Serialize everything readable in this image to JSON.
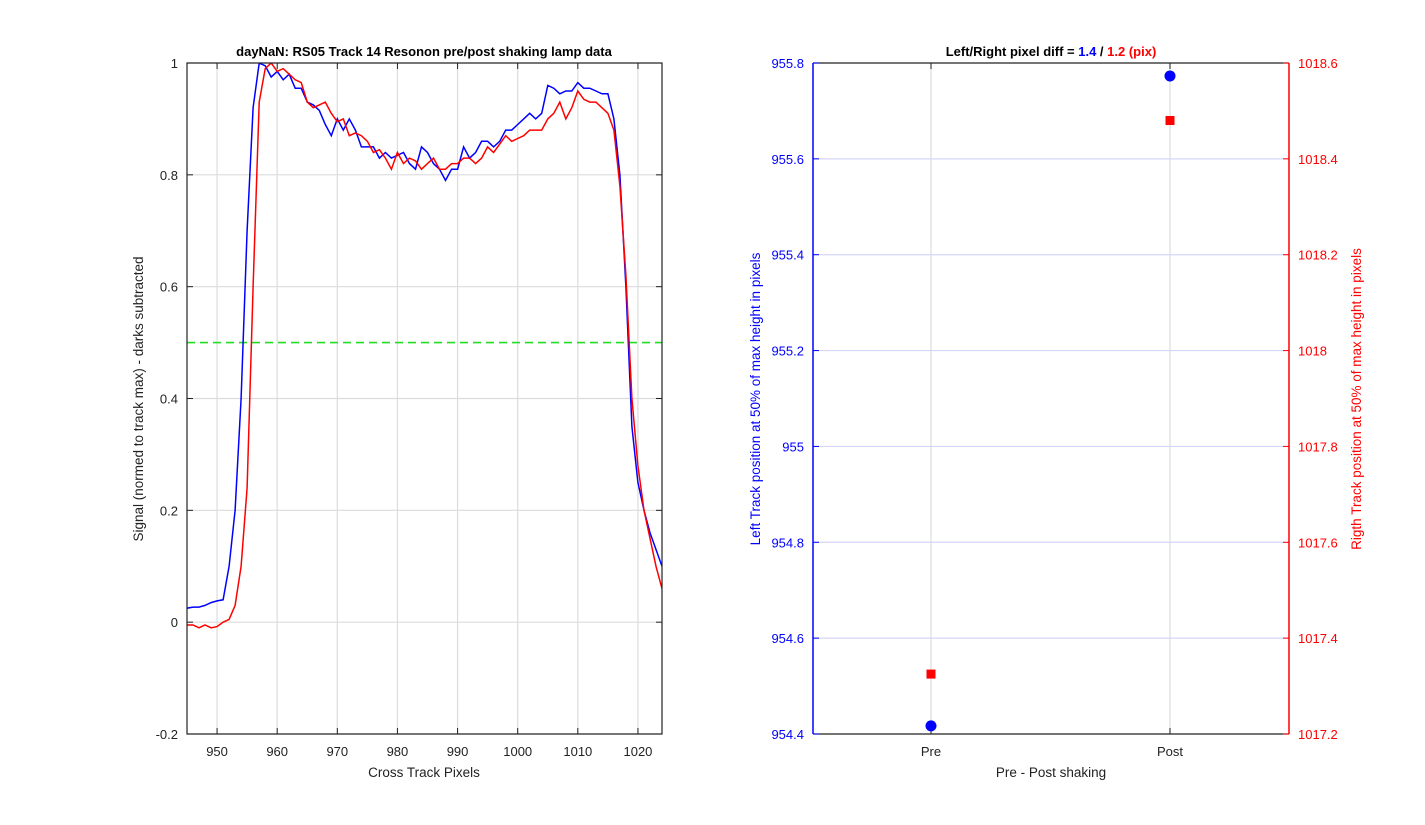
{
  "chart_data": [
    {
      "type": "line",
      "title": "dayNaN: RS05  Track 14 Resonon pre/post shaking lamp data",
      "xlabel": "Cross Track Pixels",
      "ylabel": "Signal (normed to track max) - darks subtracted",
      "xlim": [
        945,
        1024
      ],
      "ylim": [
        -0.2,
        1
      ],
      "xticks": [
        950,
        960,
        970,
        980,
        990,
        1000,
        1010,
        1020
      ],
      "yticks": [
        -0.2,
        0,
        0.2,
        0.4,
        0.6,
        0.8,
        1
      ],
      "ytick_labels": [
        "-0.2",
        "0",
        "0.2",
        "0.4",
        "0.6",
        "0.8",
        "1"
      ],
      "grid": true,
      "threshold_line": {
        "y": 0.5,
        "color": "#22dd22",
        "style": "dashed"
      },
      "series": [
        {
          "color": "#0000ff",
          "x": [
            945,
            946,
            947,
            948,
            949,
            950,
            951,
            952,
            953,
            954,
            955,
            956,
            957,
            958,
            959,
            960,
            961,
            962,
            963,
            964,
            965,
            966,
            967,
            968,
            969,
            970,
            971,
            972,
            973,
            974,
            975,
            976,
            977,
            978,
            979,
            980,
            981,
            982,
            983,
            984,
            985,
            986,
            987,
            988,
            989,
            990,
            991,
            992,
            993,
            994,
            995,
            996,
            997,
            998,
            999,
            1000,
            1001,
            1002,
            1003,
            1004,
            1005,
            1006,
            1007,
            1008,
            1009,
            1010,
            1011,
            1012,
            1013,
            1014,
            1015,
            1016,
            1017,
            1018,
            1019,
            1020,
            1021,
            1022,
            1023,
            1024
          ],
          "values": [
            0.025,
            0.027,
            0.027,
            0.03,
            0.035,
            0.038,
            0.04,
            0.1,
            0.2,
            0.4,
            0.7,
            0.92,
            1.0,
            0.995,
            0.975,
            0.985,
            0.97,
            0.98,
            0.955,
            0.955,
            0.93,
            0.925,
            0.915,
            0.89,
            0.87,
            0.9,
            0.88,
            0.9,
            0.88,
            0.85,
            0.85,
            0.85,
            0.83,
            0.84,
            0.83,
            0.835,
            0.84,
            0.82,
            0.81,
            0.85,
            0.84,
            0.82,
            0.81,
            0.79,
            0.81,
            0.81,
            0.85,
            0.83,
            0.84,
            0.86,
            0.86,
            0.85,
            0.86,
            0.88,
            0.88,
            0.89,
            0.9,
            0.91,
            0.9,
            0.91,
            0.96,
            0.955,
            0.945,
            0.95,
            0.95,
            0.965,
            0.955,
            0.955,
            0.95,
            0.945,
            0.945,
            0.9,
            0.8,
            0.6,
            0.35,
            0.25,
            0.2,
            0.16,
            0.13,
            0.1
          ]
        },
        {
          "color": "#ff0000",
          "x": [
            945,
            946,
            947,
            948,
            949,
            950,
            951,
            952,
            953,
            954,
            955,
            956,
            957,
            958,
            959,
            960,
            961,
            962,
            963,
            964,
            965,
            966,
            967,
            968,
            969,
            970,
            971,
            972,
            973,
            974,
            975,
            976,
            977,
            978,
            979,
            980,
            981,
            982,
            983,
            984,
            985,
            986,
            987,
            988,
            989,
            990,
            991,
            992,
            993,
            994,
            995,
            996,
            997,
            998,
            999,
            1000,
            1001,
            1002,
            1003,
            1004,
            1005,
            1006,
            1007,
            1008,
            1009,
            1010,
            1011,
            1012,
            1013,
            1014,
            1015,
            1016,
            1017,
            1018,
            1019,
            1020,
            1021,
            1022,
            1023,
            1024
          ],
          "values": [
            -0.005,
            -0.005,
            -0.01,
            -0.005,
            -0.01,
            -0.008,
            0.0,
            0.005,
            0.03,
            0.1,
            0.24,
            0.6,
            0.93,
            0.99,
            1.0,
            0.985,
            0.99,
            0.98,
            0.97,
            0.965,
            0.93,
            0.92,
            0.925,
            0.93,
            0.91,
            0.895,
            0.9,
            0.87,
            0.875,
            0.87,
            0.86,
            0.84,
            0.845,
            0.83,
            0.81,
            0.84,
            0.82,
            0.83,
            0.825,
            0.81,
            0.82,
            0.83,
            0.81,
            0.81,
            0.82,
            0.82,
            0.83,
            0.83,
            0.82,
            0.83,
            0.85,
            0.84,
            0.855,
            0.87,
            0.86,
            0.865,
            0.87,
            0.88,
            0.88,
            0.88,
            0.9,
            0.91,
            0.93,
            0.9,
            0.92,
            0.95,
            0.935,
            0.93,
            0.93,
            0.92,
            0.91,
            0.88,
            0.78,
            0.62,
            0.4,
            0.28,
            0.2,
            0.15,
            0.1,
            0.06
          ]
        }
      ]
    },
    {
      "type": "scatter",
      "title_parts": [
        {
          "text": "Left/Right pixel diff = ",
          "color": "#000000"
        },
        {
          "text": "1.4",
          "color": "#0000ff"
        },
        {
          "text": " / ",
          "color": "#000000"
        },
        {
          "text": "1.2 (pix)",
          "color": "#ff0000"
        }
      ],
      "xlabel": "Pre - Post shaking",
      "categories": [
        "Pre",
        "Post"
      ],
      "ylabel_left": "Left Track position at 50% of max height in pixels",
      "ylabel_right": "Rigth Track position at 50% of max height in pixels",
      "ylim_left": [
        954.4,
        955.8
      ],
      "yticks_left": [
        954.4,
        954.6,
        954.8,
        955,
        955.2,
        955.4,
        955.6,
        955.8
      ],
      "ytick_labels_left": [
        "954.4",
        "954.6",
        "954.8",
        "955",
        "955.2",
        "955.4",
        "955.6",
        "955.8"
      ],
      "ylim_right": [
        1017.2,
        1018.6
      ],
      "yticks_right": [
        1017.2,
        1017.4,
        1017.6,
        1017.8,
        1018,
        1018.2,
        1018.4,
        1018.6
      ],
      "ytick_labels_right": [
        "1017.2",
        "1017.4",
        "1017.6",
        "1017.8",
        "1018",
        "1018.2",
        "1018.4",
        "1018.6"
      ],
      "grid": true,
      "left_series": {
        "color": "#0000ff",
        "marker": "circle",
        "values": [
          954.417,
          955.773
        ]
      },
      "right_series": {
        "color": "#ff0000",
        "marker": "square",
        "values": [
          1017.325,
          1018.48
        ]
      }
    }
  ]
}
